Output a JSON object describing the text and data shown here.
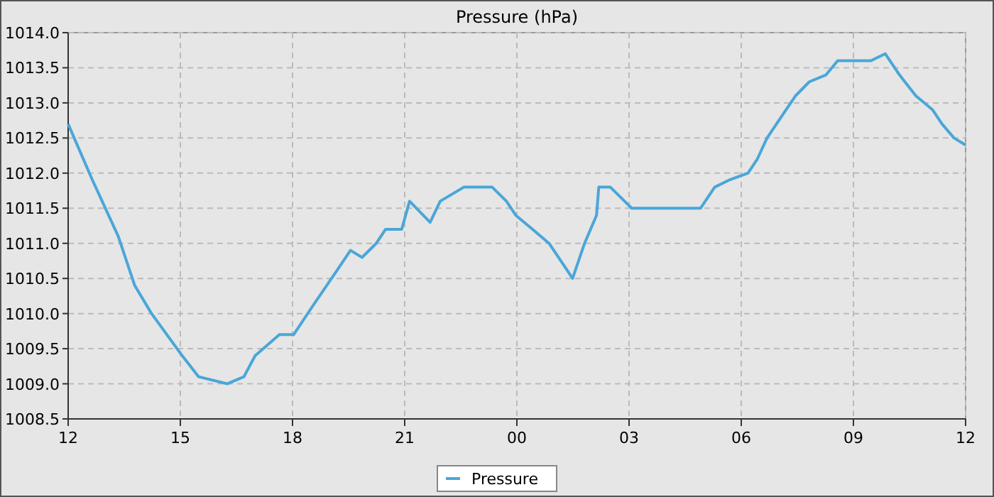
{
  "chart_data": {
    "type": "line",
    "title": "Pressure (hPa)",
    "xlim": [
      12,
      36
    ],
    "ylim": [
      1008.5,
      1014.0
    ],
    "xticks": [
      {
        "value": 12,
        "label": "12"
      },
      {
        "value": 15,
        "label": "15"
      },
      {
        "value": 18,
        "label": "18"
      },
      {
        "value": 21,
        "label": "21"
      },
      {
        "value": 24,
        "label": "00"
      },
      {
        "value": 27,
        "label": "03"
      },
      {
        "value": 30,
        "label": "06"
      },
      {
        "value": 33,
        "label": "09"
      },
      {
        "value": 36,
        "label": "12"
      }
    ],
    "yticks": [
      {
        "value": 1008.5,
        "label": "1008.5"
      },
      {
        "value": 1009,
        "label": "1009.0"
      },
      {
        "value": 1009.5,
        "label": "1009.5"
      },
      {
        "value": 1010,
        "label": "1010.0"
      },
      {
        "value": 1010.5,
        "label": "1010.5"
      },
      {
        "value": 1011,
        "label": "1011.0"
      },
      {
        "value": 1011.5,
        "label": "1011.5"
      },
      {
        "value": 1012,
        "label": "1012.0"
      },
      {
        "value": 1012.5,
        "label": "1012.5"
      },
      {
        "value": 1013,
        "label": "1013.0"
      },
      {
        "value": 1013.5,
        "label": "1013.5"
      },
      {
        "value": 1014,
        "label": "1014.0"
      }
    ],
    "grid": true,
    "legend": "bottom",
    "line_style": "solid",
    "series": [
      {
        "name": "Pressure",
        "color": "#4aa6d8",
        "x": [
          12,
          12.65,
          13.34,
          13.78,
          14.23,
          15.05,
          15.49,
          16.25,
          16.7,
          17,
          17.65,
          18.03,
          18.53,
          19.17,
          19.55,
          19.86,
          20.24,
          20.49,
          20.92,
          21.13,
          21.68,
          21.95,
          22.58,
          23.34,
          23.72,
          23.97,
          24.42,
          24.86,
          25.24,
          25.49,
          25.81,
          26.13,
          26.19,
          26.5,
          26.88,
          27.07,
          27.77,
          28.91,
          29.29,
          29.67,
          30.18,
          30.43,
          30.69,
          31.07,
          31.45,
          31.82,
          32.27,
          32.58,
          33.47,
          33.85,
          34.23,
          34.67,
          35.12,
          35.37,
          35.69,
          36
        ],
        "values": [
          1012.7,
          1011.9,
          1011.1,
          1010.4,
          1010,
          1009.4,
          1009.1,
          1009,
          1009.1,
          1009.4,
          1009.7,
          1009.7,
          1010.1,
          1010.6,
          1010.9,
          1010.8,
          1011,
          1011.2,
          1011.2,
          1011.6,
          1011.3,
          1011.6,
          1011.8,
          1011.8,
          1011.6,
          1011.4,
          1011.2,
          1011,
          1010.7,
          1010.5,
          1011,
          1011.4,
          1011.8,
          1011.8,
          1011.6,
          1011.5,
          1011.5,
          1011.5,
          1011.8,
          1011.9,
          1012,
          1012.2,
          1012.5,
          1012.8,
          1013.1,
          1013.3,
          1013.4,
          1013.6,
          1013.6,
          1013.7,
          1013.4,
          1013.1,
          1012.9,
          1012.7,
          1012.5,
          1012.4
        ]
      }
    ]
  }
}
